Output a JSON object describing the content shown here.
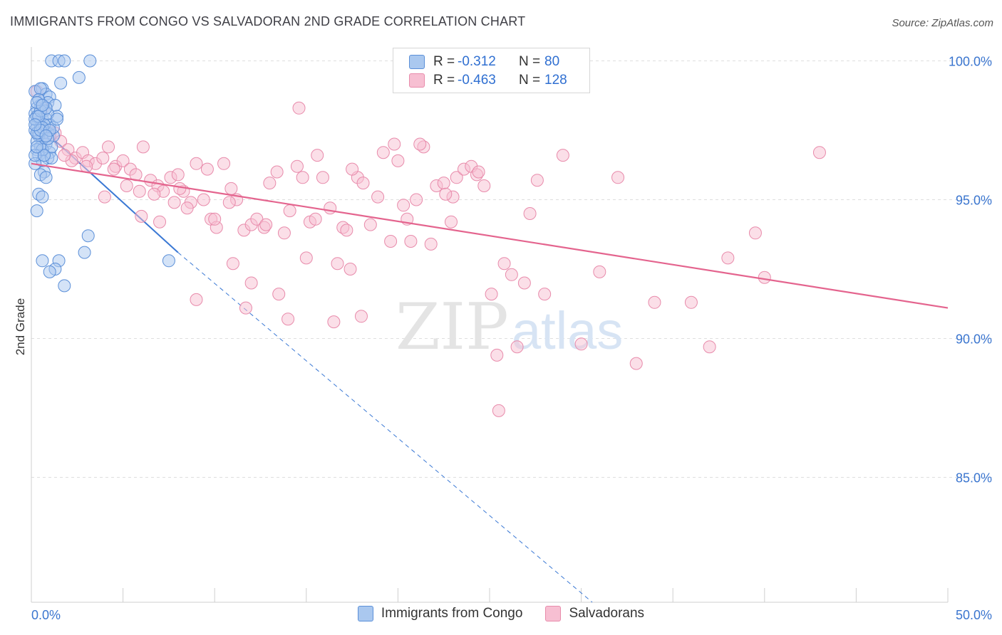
{
  "title": "IMMIGRANTS FROM CONGO VS SALVADORAN 2ND GRADE CORRELATION CHART",
  "source": "Source: ZipAtlas.com",
  "watermark": {
    "zip": "ZIP",
    "atlas": "atlas"
  },
  "legend": {
    "rows": [
      {
        "r_label": "R =",
        "r_value": "-0.312",
        "n_label": "N =",
        "n_value": "80"
      },
      {
        "r_label": "R =",
        "r_value": "-0.463",
        "n_label": "N =",
        "n_value": "128"
      }
    ]
  },
  "bottom_legend": [
    "Immigrants from Congo",
    "Salvadorans"
  ],
  "colors": {
    "blue_fill": "#aac8ef",
    "blue_stroke": "#5b8fd8",
    "blue_line": "#3a78d4",
    "pink_fill": "#f7bfd2",
    "pink_stroke": "#e88bab",
    "pink_line": "#e4648e",
    "axis_text": "#3a75cf",
    "grid": "#dedede"
  },
  "chart_data": {
    "type": "scatter",
    "title": "IMMIGRANTS FROM CONGO VS SALVADORAN 2ND GRADE CORRELATION CHART",
    "xlabel": "",
    "ylabel": "2nd Grade",
    "xlim": [
      0,
      50
    ],
    "ylim": [
      80.5,
      100.5
    ],
    "x_tick_labels": {
      "0": "0.0%",
      "50": "50.0%"
    },
    "y_ticks": [
      85,
      90,
      95,
      100
    ],
    "y_tick_labels": [
      "85.0%",
      "90.0%",
      "95.0%",
      "100.0%"
    ],
    "grid": true,
    "legend_placement": "top-center",
    "series": [
      {
        "name": "Immigrants from Congo",
        "r": -0.312,
        "n": 80,
        "trend": {
          "x0": 0,
          "y0": 97.9,
          "x1": 8.0,
          "y1": 93.1,
          "dashed_to_x": 30.6,
          "dashed_to_y": 80.5
        },
        "points": [
          [
            1.1,
            100
          ],
          [
            1.5,
            100
          ],
          [
            1.8,
            100
          ],
          [
            3.2,
            100
          ],
          [
            1.6,
            99.2
          ],
          [
            2.6,
            99.4
          ],
          [
            0.6,
            99.0
          ],
          [
            0.8,
            98.8
          ],
          [
            0.4,
            98.6
          ],
          [
            1.0,
            98.7
          ],
          [
            0.9,
            98.5
          ],
          [
            0.5,
            98.4
          ],
          [
            0.3,
            98.3
          ],
          [
            1.3,
            98.4
          ],
          [
            0.7,
            98.2
          ],
          [
            0.2,
            98.1
          ],
          [
            1.4,
            98.0
          ],
          [
            0.6,
            97.9
          ],
          [
            0.4,
            97.8
          ],
          [
            0.8,
            97.9
          ],
          [
            0.3,
            97.7
          ],
          [
            0.5,
            97.6
          ],
          [
            1.0,
            97.7
          ],
          [
            0.2,
            97.5
          ],
          [
            0.7,
            97.5
          ],
          [
            0.9,
            97.4
          ],
          [
            0.4,
            97.3
          ],
          [
            0.6,
            97.2
          ],
          [
            1.2,
            97.3
          ],
          [
            0.3,
            97.1
          ],
          [
            0.8,
            97.0
          ],
          [
            0.5,
            96.9
          ],
          [
            0.3,
            96.8
          ],
          [
            1.0,
            96.7
          ],
          [
            0.4,
            96.6
          ],
          [
            0.9,
            96.5
          ],
          [
            0.6,
            96.4
          ],
          [
            1.1,
            96.5
          ],
          [
            0.2,
            96.3
          ],
          [
            0.7,
            96.0
          ],
          [
            0.5,
            95.9
          ],
          [
            0.8,
            95.8
          ],
          [
            0.4,
            95.2
          ],
          [
            0.6,
            95.1
          ],
          [
            0.3,
            94.6
          ],
          [
            3.1,
            93.7
          ],
          [
            2.9,
            93.1
          ],
          [
            0.6,
            92.8
          ],
          [
            1.5,
            92.8
          ],
          [
            1.3,
            92.5
          ],
          [
            1.0,
            92.4
          ],
          [
            7.5,
            92.8
          ],
          [
            1.8,
            91.9
          ],
          [
            0.2,
            98.9
          ],
          [
            0.5,
            99.0
          ],
          [
            0.3,
            98.0
          ],
          [
            0.4,
            97.4
          ],
          [
            0.9,
            98.1
          ],
          [
            1.2,
            97.6
          ],
          [
            0.6,
            96.8
          ],
          [
            0.2,
            97.9
          ],
          [
            0.3,
            97.4
          ],
          [
            0.5,
            98.2
          ],
          [
            0.7,
            97.7
          ],
          [
            0.4,
            98.6
          ],
          [
            1.1,
            96.9
          ],
          [
            0.6,
            97.6
          ],
          [
            0.2,
            96.6
          ],
          [
            0.8,
            98.3
          ],
          [
            1.4,
            97.9
          ],
          [
            0.3,
            98.5
          ],
          [
            0.5,
            97.5
          ],
          [
            0.9,
            97.2
          ],
          [
            0.7,
            96.6
          ],
          [
            0.4,
            98.0
          ],
          [
            0.2,
            97.7
          ],
          [
            0.6,
            98.4
          ],
          [
            1.0,
            97.5
          ],
          [
            0.3,
            96.9
          ],
          [
            0.8,
            97.3
          ]
        ]
      },
      {
        "name": "Salvadorans",
        "r": -0.463,
        "n": 128,
        "trend": {
          "x0": 0,
          "y0": 96.3,
          "x1": 50,
          "y1": 91.1
        },
        "points": [
          [
            0.3,
            98.9
          ],
          [
            0.6,
            98.3
          ],
          [
            0.9,
            97.5
          ],
          [
            1.3,
            97.4
          ],
          [
            1.6,
            97.1
          ],
          [
            2.0,
            96.8
          ],
          [
            2.4,
            96.5
          ],
          [
            2.8,
            96.7
          ],
          [
            3.1,
            96.4
          ],
          [
            3.5,
            96.3
          ],
          [
            3.9,
            96.5
          ],
          [
            4.2,
            96.9
          ],
          [
            4.6,
            96.2
          ],
          [
            5.0,
            96.4
          ],
          [
            5.4,
            96.1
          ],
          [
            5.7,
            95.9
          ],
          [
            6.1,
            96.9
          ],
          [
            6.5,
            95.7
          ],
          [
            6.9,
            95.5
          ],
          [
            7.2,
            95.3
          ],
          [
            7.6,
            95.8
          ],
          [
            8.0,
            95.9
          ],
          [
            8.3,
            95.3
          ],
          [
            8.7,
            94.9
          ],
          [
            9.0,
            96.3
          ],
          [
            9.4,
            95.0
          ],
          [
            9.8,
            94.3
          ],
          [
            10.1,
            94.0
          ],
          [
            10.5,
            96.3
          ],
          [
            10.9,
            95.4
          ],
          [
            11.2,
            95.0
          ],
          [
            11.6,
            93.9
          ],
          [
            12.0,
            94.1
          ],
          [
            12.3,
            94.3
          ],
          [
            12.7,
            94.0
          ],
          [
            13.0,
            95.6
          ],
          [
            13.4,
            96.0
          ],
          [
            13.8,
            93.8
          ],
          [
            14.1,
            94.6
          ],
          [
            14.5,
            96.2
          ],
          [
            14.8,
            95.8
          ],
          [
            15.2,
            94.2
          ],
          [
            15.6,
            96.6
          ],
          [
            15.9,
            95.8
          ],
          [
            16.3,
            94.7
          ],
          [
            16.7,
            92.7
          ],
          [
            17.0,
            94.0
          ],
          [
            17.4,
            92.5
          ],
          [
            17.8,
            95.8
          ],
          [
            18.1,
            95.6
          ],
          [
            18.5,
            94.1
          ],
          [
            18.9,
            95.1
          ],
          [
            19.2,
            96.7
          ],
          [
            19.6,
            93.5
          ],
          [
            20.0,
            96.4
          ],
          [
            20.3,
            94.8
          ],
          [
            20.7,
            93.5
          ],
          [
            21.0,
            95.0
          ],
          [
            21.4,
            96.9
          ],
          [
            21.8,
            93.4
          ],
          [
            22.1,
            95.5
          ],
          [
            22.5,
            95.6
          ],
          [
            22.9,
            94.2
          ],
          [
            23.2,
            95.8
          ],
          [
            23.6,
            96.1
          ],
          [
            24.0,
            96.2
          ],
          [
            24.3,
            95.9
          ],
          [
            24.7,
            95.5
          ],
          [
            25.1,
            91.6
          ],
          [
            25.4,
            89.4
          ],
          [
            25.8,
            92.7
          ],
          [
            26.2,
            92.3
          ],
          [
            26.5,
            89.7
          ],
          [
            26.9,
            92.0
          ],
          [
            27.2,
            94.5
          ],
          [
            27.6,
            95.7
          ],
          [
            28.0,
            91.6
          ],
          [
            29.0,
            96.6
          ],
          [
            30.0,
            89.8
          ],
          [
            31.0,
            92.4
          ],
          [
            32.0,
            95.8
          ],
          [
            33.0,
            89.1
          ],
          [
            34.0,
            91.3
          ],
          [
            36.0,
            91.3
          ],
          [
            37.0,
            89.7
          ],
          [
            38.0,
            92.9
          ],
          [
            39.5,
            93.8
          ],
          [
            40.0,
            92.2
          ],
          [
            43.0,
            96.7
          ],
          [
            25.5,
            87.4
          ],
          [
            6.0,
            94.4
          ],
          [
            7.0,
            94.2
          ],
          [
            8.5,
            94.7
          ],
          [
            10.0,
            94.3
          ],
          [
            11.0,
            92.7
          ],
          [
            12.0,
            92.0
          ],
          [
            13.5,
            91.6
          ],
          [
            15.0,
            92.9
          ],
          [
            16.5,
            90.6
          ],
          [
            18.0,
            90.8
          ],
          [
            9.0,
            91.4
          ],
          [
            11.7,
            91.1
          ],
          [
            14.0,
            90.7
          ],
          [
            2.2,
            96.4
          ],
          [
            3.0,
            96.2
          ],
          [
            4.0,
            95.1
          ],
          [
            5.2,
            95.5
          ],
          [
            6.7,
            95.2
          ],
          [
            7.8,
            94.9
          ],
          [
            14.6,
            98.3
          ],
          [
            21.2,
            97.0
          ],
          [
            26.0,
            100
          ],
          [
            17.5,
            96.1
          ],
          [
            19.8,
            97.0
          ],
          [
            23.0,
            95.1
          ],
          [
            1.0,
            97.3
          ],
          [
            1.8,
            96.6
          ],
          [
            4.5,
            96.1
          ],
          [
            5.9,
            95.3
          ],
          [
            8.1,
            95.4
          ],
          [
            10.8,
            94.9
          ],
          [
            12.8,
            94.1
          ],
          [
            15.5,
            94.3
          ],
          [
            17.2,
            93.9
          ],
          [
            20.5,
            94.3
          ],
          [
            22.6,
            95.2
          ],
          [
            24.4,
            96.0
          ],
          [
            9.6,
            96.1
          ]
        ]
      }
    ]
  }
}
